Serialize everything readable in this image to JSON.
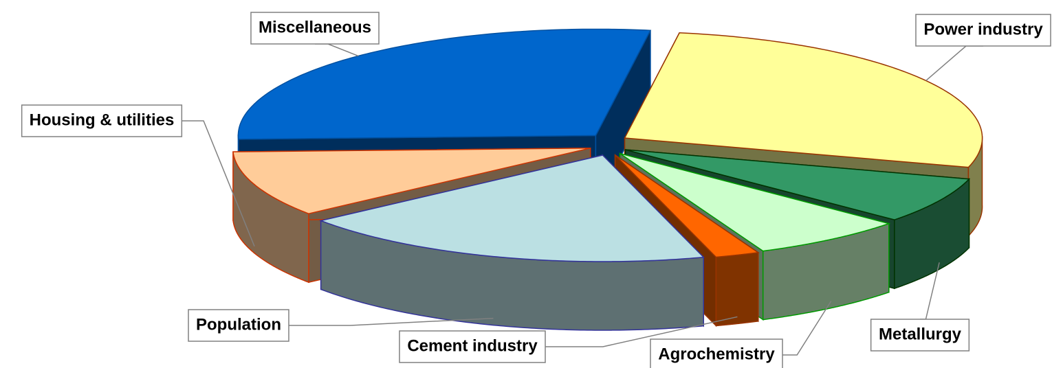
{
  "chart_data": {
    "type": "pie",
    "categories": [
      "Miscellaneous",
      "Power industry",
      "Metallurgy",
      "Agrochemistry",
      "Cement industry",
      "Population",
      "Housing & utilities"
    ],
    "values": [
      28,
      27,
      7,
      7,
      2,
      19,
      10
    ],
    "colors": [
      "#0066cc",
      "#ffff99",
      "#339966",
      "#ccffcc",
      "#ff6600",
      "#bbe0e3",
      "#ffcc99"
    ],
    "edge_colors": [
      "#0050a0",
      "#993300",
      "#003300",
      "#009900",
      "#993300",
      "#333399",
      "#cc3300"
    ],
    "three_d": true,
    "exploded": true
  }
}
